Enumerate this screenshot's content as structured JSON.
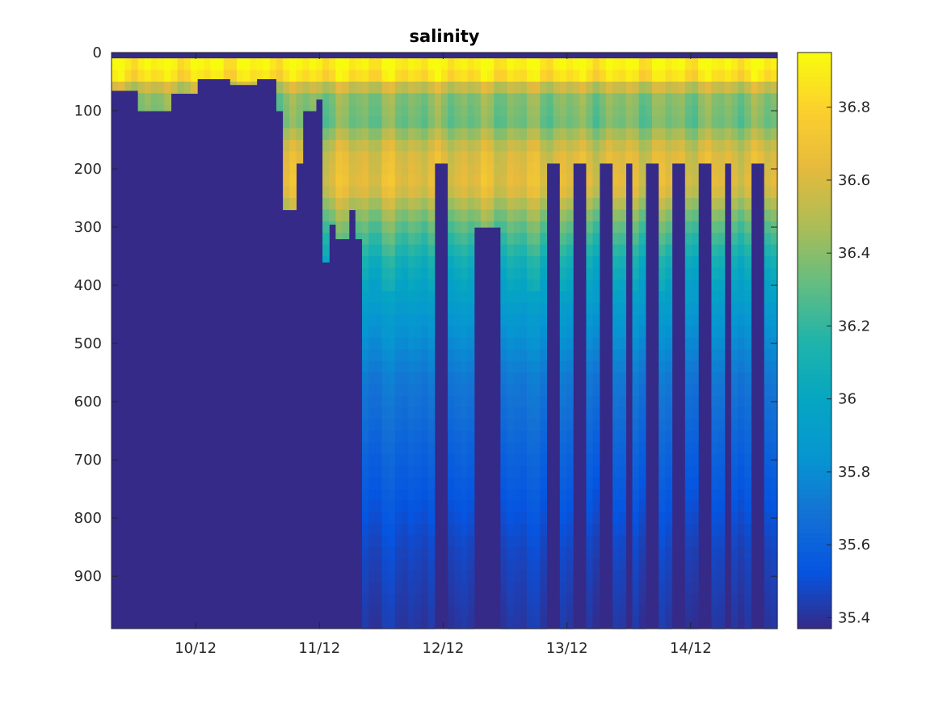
{
  "chart_data": {
    "type": "heatmap",
    "title": "salinity",
    "xlabel": "",
    "ylabel": "",
    "x_tick_labels": [
      "10/12",
      "11/12",
      "12/12",
      "13/12",
      "14/12"
    ],
    "x_tick_values": [
      10,
      11,
      12,
      13,
      14
    ],
    "xlim": [
      9.32,
      14.7
    ],
    "y_tick_values": [
      0,
      100,
      200,
      300,
      400,
      500,
      600,
      700,
      800,
      900
    ],
    "ylim": [
      0,
      990
    ],
    "y_reversed": true,
    "colorbar": {
      "colormap": "parula",
      "clim": [
        35.37,
        36.95
      ],
      "tick_values": [
        35.4,
        35.6,
        35.8,
        36.0,
        36.2,
        36.4,
        36.6,
        36.8
      ],
      "tick_labels": [
        "35.4",
        "35.6",
        "35.8",
        "36",
        "36.2",
        "36.4",
        "36.6",
        "36.8"
      ]
    },
    "profiles": {
      "count": 101,
      "surface_gap_depth": 10,
      "representative_salinity_profile": [
        {
          "depth": 10,
          "salinity": 36.95
        },
        {
          "depth": 40,
          "salinity": 36.85
        },
        {
          "depth": 70,
          "salinity": 36.4
        },
        {
          "depth": 120,
          "salinity": 36.35
        },
        {
          "depth": 170,
          "salinity": 36.6
        },
        {
          "depth": 230,
          "salinity": 36.65
        },
        {
          "depth": 290,
          "salinity": 36.35
        },
        {
          "depth": 360,
          "salinity": 36.1
        },
        {
          "depth": 450,
          "salinity": 35.88
        },
        {
          "depth": 560,
          "salinity": 35.72
        },
        {
          "depth": 700,
          "salinity": 35.6
        },
        {
          "depth": 850,
          "salinity": 35.48
        },
        {
          "depth": 990,
          "salinity": 35.42
        }
      ],
      "max_depth_by_day": [
        {
          "day": 9.32,
          "max_depth": 65
        },
        {
          "day": 9.55,
          "max_depth": 100
        },
        {
          "day": 9.8,
          "max_depth": 70
        },
        {
          "day": 10.0,
          "max_depth": 45
        },
        {
          "day": 10.3,
          "max_depth": 55
        },
        {
          "day": 10.5,
          "max_depth": 45
        },
        {
          "day": 10.65,
          "max_depth": 100
        },
        {
          "day": 10.73,
          "max_depth": 270
        },
        {
          "day": 10.8,
          "max_depth": 190
        },
        {
          "day": 10.86,
          "max_depth": 100
        },
        {
          "day": 10.95,
          "max_depth": 80
        },
        {
          "day": 11.03,
          "max_depth": 360
        },
        {
          "day": 11.1,
          "max_depth": 295
        },
        {
          "day": 11.15,
          "max_depth": 320
        },
        {
          "day": 11.23,
          "max_depth": 270
        },
        {
          "day": 11.3,
          "max_depth": 320
        },
        {
          "day": 11.35,
          "max_depth": 990
        }
      ],
      "full_depth_gap": {
        "from_day": 12.27,
        "to_day": 12.48,
        "max_depth": 300
      },
      "shallow_profiles_days": [
        12.0,
        12.9,
        13.1,
        13.3,
        13.5,
        13.7,
        13.9,
        14.1,
        14.3,
        14.55
      ],
      "shallow_profile_max_depth": 190
    }
  }
}
